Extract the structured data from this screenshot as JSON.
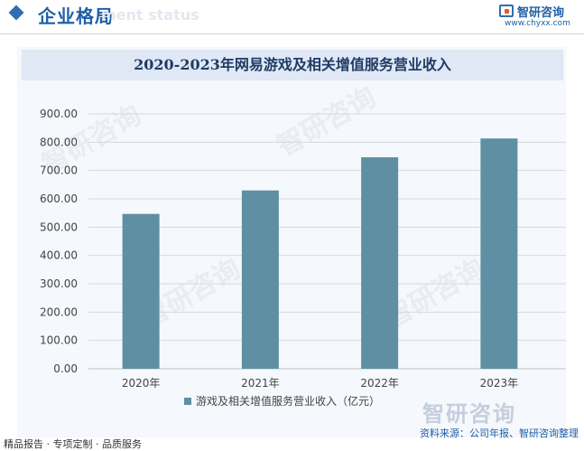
{
  "header": {
    "section_title": "企业格局",
    "section_subtitle": "ment status",
    "logo_name": "智研咨询",
    "logo_url": "www.chyxx.com"
  },
  "chart_title": "2020-2023年网易游戏及相关增值服务营业收入",
  "chart_data": {
    "type": "bar",
    "title": "2020-2023年网易游戏及相关增值服务营业收入",
    "categories": [
      "2020年",
      "2021年",
      "2022年",
      "2023年"
    ],
    "series": [
      {
        "name": "游戏及相关增值服务营业收入（亿元）",
        "values": [
          546.7,
          629.6,
          746.7,
          813.2
        ],
        "color": "#5f8fa3"
      }
    ],
    "ylim": [
      0,
      900
    ],
    "yticks": [
      "0.00",
      "100.00",
      "200.00",
      "300.00",
      "400.00",
      "500.00",
      "600.00",
      "700.00",
      "800.00",
      "900.00"
    ],
    "grid": true,
    "legend_position": "bottom"
  },
  "watermark": "智研咨询",
  "footer": {
    "left": "精品报告 · 专项定制 · 品质服务",
    "source": "资料来源：公司年报、智研咨询整理"
  }
}
